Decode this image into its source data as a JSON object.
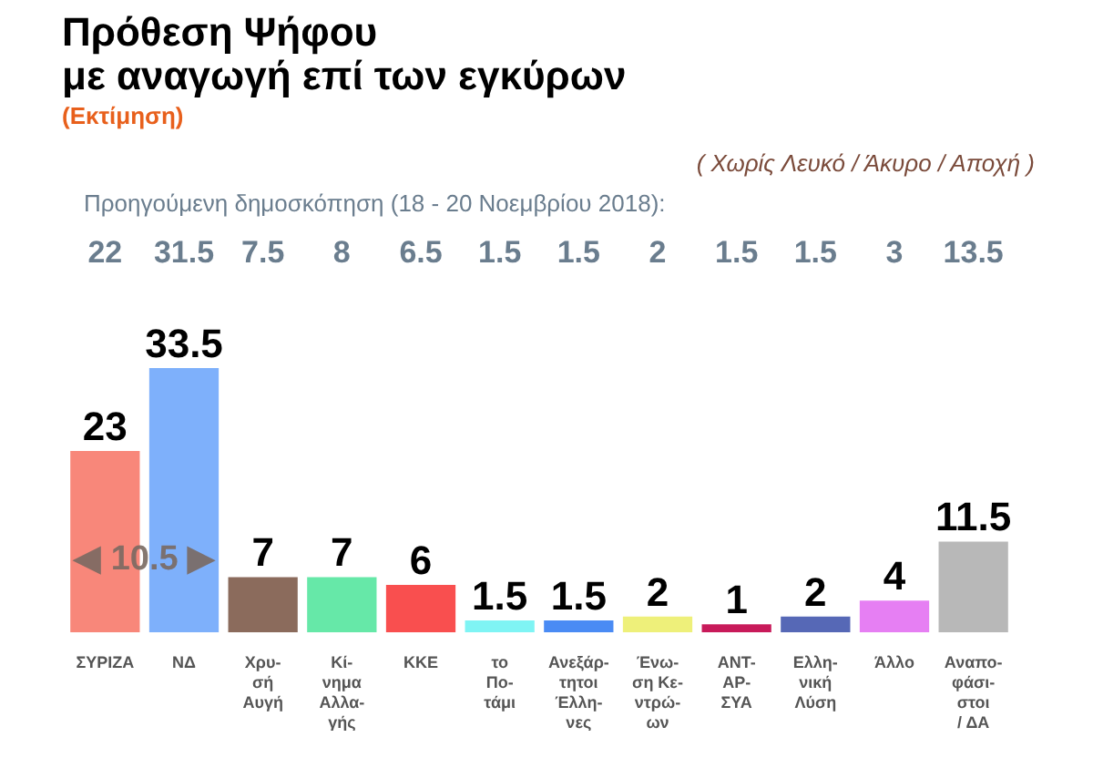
{
  "chart_data": {
    "type": "bar",
    "title": "Πρόθεση Ψήφου\nμε αναγωγή επί των εγκύρων",
    "subtitle": "(Εκτίμηση)",
    "categories": [
      "ΣΥΡΙΖΑ",
      "ΝΔ",
      "Χρυ-\nσή\nΑυγή",
      "Κί-\nνημα\nΑλλα-\nγής",
      "ΚΚΕ",
      "το\nΠο-\nτάμι",
      "Ανεξάρ-\nτητοι\nΈλλη-\nνες",
      "Ένω-\nση Κε-\nντρώ-\nων",
      "ΑΝΤ-\nΑΡ-\nΣΥΑ",
      "Ελλη-\nνική\nΛύση",
      "Άλλο",
      "Αναπο-\nφάσι-\nστοι\n/ ΔΑ"
    ],
    "values": [
      23,
      33.5,
      7,
      7,
      6,
      1.5,
      1.5,
      2,
      1,
      2,
      4,
      11.5
    ],
    "colors": [
      "#f8877a",
      "#7eb0fb",
      "#8b6b5c",
      "#66e8a8",
      "#f94f4f",
      "#7ff4f4",
      "#4a8bf4",
      "#eef07a",
      "#c81a5a",
      "#5668b6",
      "#e67ff3",
      "#b8b8b8"
    ],
    "data_labels": true,
    "tick_labels": "x",
    "annotations": [
      "( Χωρίς Λευκό / Άκυρο / Αποχή )",
      "Προηγούμενη δημοσκόπηση (18 - 20 Νοεμβρίου 2018):",
      "22",
      "31.5",
      "7.5",
      "8",
      "6.5",
      "1.5",
      "1.5",
      "2",
      "1.5",
      "1.5",
      "3",
      "13.5",
      "◀ 10.5 ▶"
    ]
  }
}
